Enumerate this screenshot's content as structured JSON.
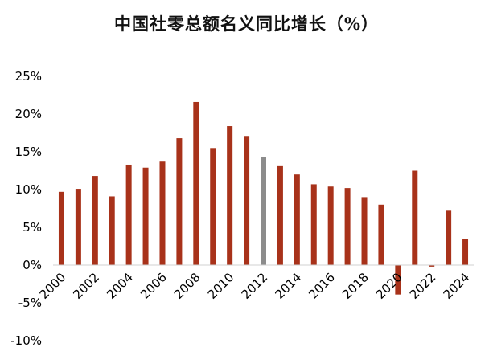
{
  "chart_data": {
    "type": "bar",
    "title": "中国社零总额名义同比增长（%）",
    "xlabel": "",
    "ylabel": "",
    "categories": [
      "2000",
      "2001",
      "2002",
      "2003",
      "2004",
      "2005",
      "2006",
      "2007",
      "2008",
      "2009",
      "2010",
      "2011",
      "2012",
      "2013",
      "2014",
      "2015",
      "2016",
      "2017",
      "2018",
      "2019",
      "2020",
      "2021",
      "2022",
      "2023",
      "2024"
    ],
    "values": [
      9.7,
      10.1,
      11.8,
      9.1,
      13.3,
      12.9,
      13.7,
      16.8,
      21.6,
      15.5,
      18.4,
      17.1,
      14.3,
      13.1,
      12.0,
      10.7,
      10.4,
      10.2,
      9.0,
      8.0,
      -3.9,
      12.5,
      -0.2,
      7.2,
      3.5
    ],
    "highlight_index": 12,
    "colors": {
      "bar": "#A8321A",
      "highlight": "#8C8C8C",
      "axis": "#D0D0D0"
    },
    "yticks": [
      -10,
      -5,
      0,
      5,
      10,
      15,
      20,
      25
    ],
    "ytick_labels": [
      "-10%",
      "-5%",
      "0%",
      "5%",
      "10%",
      "15%",
      "20%",
      "25%"
    ],
    "xtick_labels": [
      "2000",
      "2002",
      "2004",
      "2006",
      "2008",
      "2010",
      "2012",
      "2014",
      "2016",
      "2018",
      "2020",
      "2022",
      "2024"
    ],
    "ylim": [
      -10,
      25
    ],
    "grid": false,
    "legend": "none"
  }
}
